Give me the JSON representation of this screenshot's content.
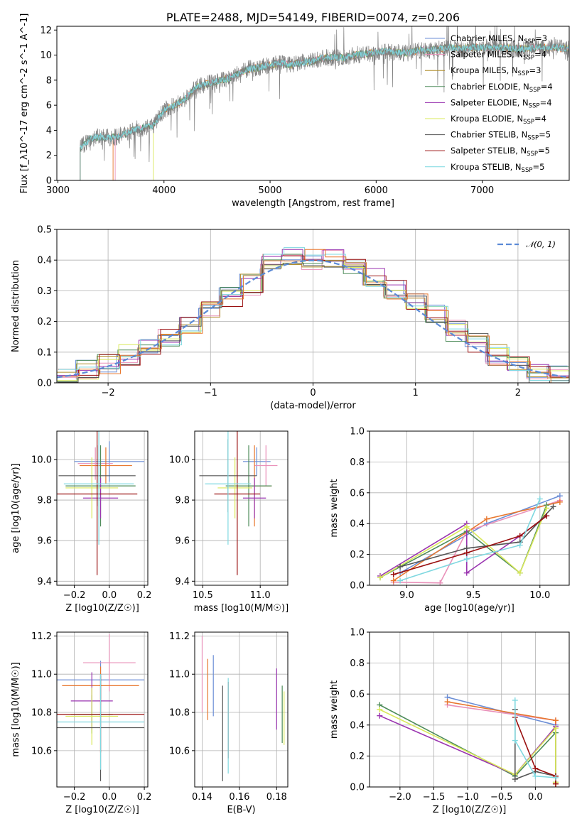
{
  "colors": {
    "Chabrier MILES": "#6b8ed6",
    "Salpeter MILES": "#e990b9",
    "Kroupa MILES": "#b08d2a",
    "Chabrier ELODIE": "#4e8c5a",
    "Salpeter ELODIE": "#9a35b0",
    "Kroupa ELODIE": "#d9e85a",
    "Chabrier STELIB": "#555555",
    "Salpeter STELIB": "#9a1010",
    "Kroupa STELIB": "#7fd8e0",
    "extra_orange": "#e8772e",
    "spectrum_gray": "#808080",
    "gaussian": "#5b8ad6"
  },
  "chart_data": [
    {
      "id": "spectrum",
      "type": "line",
      "title": "PLATE=2488, MJD=54149, FIBERID=0074, z=0.206",
      "xlabel": "wavelength [Angstrom, rest frame]",
      "ylabel": "Flux [f_λ10^-17 erg cm^-2 s^-1 A^-1]",
      "xlim": [
        2990,
        7820
      ],
      "ylim": [
        0,
        12.3
      ],
      "xticks": [
        3000,
        4000,
        5000,
        6000,
        7000
      ],
      "yticks": [
        0,
        2,
        4,
        6,
        8,
        10,
        12
      ],
      "grid": false,
      "legend_position": "top-right",
      "data_envelope": {
        "x": [
          3210,
          3300,
          3400,
          3500,
          3600,
          3700,
          3800,
          3900,
          4000,
          4100,
          4200,
          4300,
          4400,
          4500,
          4600,
          4700,
          4800,
          4900,
          5000,
          5100,
          5200,
          5300,
          5400,
          5500,
          5600,
          5700,
          5800,
          5900,
          6000,
          6100,
          6200,
          6300,
          6400,
          6500,
          6600,
          6700,
          6800,
          6900,
          7000,
          7100,
          7200,
          7300,
          7400,
          7500,
          7600,
          7700,
          7800
        ],
        "y": [
          2.6,
          3.3,
          3.5,
          3.4,
          3.6,
          4.0,
          4.2,
          4.4,
          5.6,
          6.0,
          6.5,
          7.4,
          7.7,
          7.9,
          8.1,
          8.5,
          8.9,
          9.0,
          9.2,
          9.4,
          9.2,
          9.4,
          9.5,
          9.8,
          9.8,
          9.8,
          10.0,
          10.1,
          10.2,
          10.3,
          10.2,
          10.2,
          10.4,
          10.4,
          10.5,
          10.6,
          10.5,
          10.6,
          10.6,
          10.6,
          10.6,
          10.5,
          10.5,
          10.6,
          10.6,
          10.6,
          10.5
        ]
      },
      "series": [
        {
          "name": "Chabrier MILES, N_SSP=3"
        },
        {
          "name": "Salpeter MILES, N_SSP=4"
        },
        {
          "name": "Kroupa MILES, N_SSP=3"
        },
        {
          "name": "Chabrier ELODIE, N_SSP=4"
        },
        {
          "name": "Salpeter ELODIE, N_SSP=4"
        },
        {
          "name": "Kroupa ELODIE, N_SSP=4"
        },
        {
          "name": "Chabrier STELIB, N_SSP=5"
        },
        {
          "name": "Salpeter STELIB, N_SSP=5"
        },
        {
          "name": "Kroupa STELIB, N_SSP=5"
        }
      ],
      "legend_entries": [
        {
          "label": "Chabrier MILES, N",
          "sub": "SSP",
          "tail": "=3",
          "color_key": "Chabrier MILES"
        },
        {
          "label": "Salpeter MILES, N",
          "sub": "SSP",
          "tail": "=4",
          "color_key": "Salpeter MILES"
        },
        {
          "label": "Kroupa MILES, N",
          "sub": "SSP",
          "tail": "=3",
          "color_key": "Kroupa MILES"
        },
        {
          "label": "Chabrier ELODIE, N",
          "sub": "SSP",
          "tail": "=4",
          "color_key": "Chabrier ELODIE"
        },
        {
          "label": "Salpeter ELODIE, N",
          "sub": "SSP",
          "tail": "=4",
          "color_key": "Salpeter ELODIE"
        },
        {
          "label": "Kroupa ELODIE, N",
          "sub": "SSP",
          "tail": "=4",
          "color_key": "Kroupa ELODIE"
        },
        {
          "label": "Chabrier STELIB, N",
          "sub": "SSP",
          "tail": "=5",
          "color_key": "Chabrier STELIB"
        },
        {
          "label": "Salpeter STELIB, N",
          "sub": "SSP",
          "tail": "=5",
          "color_key": "Salpeter STELIB"
        },
        {
          "label": "Kroupa STELIB, N",
          "sub": "SSP",
          "tail": "=5",
          "color_key": "Kroupa STELIB"
        }
      ]
    },
    {
      "id": "residuals",
      "type": "line",
      "xlabel": "(data-model)/error",
      "ylabel": "Normed distribution",
      "xlim": [
        -2.5,
        2.5
      ],
      "ylim": [
        0,
        0.5
      ],
      "xticks": [
        -2,
        -1,
        0,
        1,
        2
      ],
      "yticks": [
        0.0,
        0.1,
        0.2,
        0.3,
        0.4,
        0.5
      ],
      "grid": true,
      "legend_position": "top-right",
      "legend_label": "𝒩(0, 1)",
      "histogram": {
        "bin_edges": [
          -2.5,
          -2.3,
          -2.1,
          -1.9,
          -1.7,
          -1.5,
          -1.3,
          -1.1,
          -0.9,
          -0.7,
          -0.5,
          -0.3,
          -0.1,
          0.1,
          0.3,
          0.5,
          0.7,
          0.9,
          1.1,
          1.3,
          1.5,
          1.7,
          1.9,
          2.1,
          2.3,
          2.5
        ],
        "heights": [
          0.02,
          0.04,
          0.06,
          0.09,
          0.12,
          0.15,
          0.19,
          0.24,
          0.28,
          0.32,
          0.39,
          0.42,
          0.4,
          0.41,
          0.39,
          0.34,
          0.3,
          0.27,
          0.22,
          0.17,
          0.13,
          0.09,
          0.06,
          0.03,
          0.02
        ]
      }
    },
    {
      "id": "age_vs_Z",
      "type": "scatter",
      "xlabel": "Z [log10(Z/Z☉)]",
      "ylabel": "age [log10(age/yr)]",
      "xlim": [
        -0.3,
        0.22
      ],
      "ylim": [
        9.38,
        10.14
      ],
      "xticks": [
        -0.2,
        0.0,
        0.2
      ],
      "yticks": [
        9.4,
        9.6,
        9.8,
        10.0
      ],
      "grid": true,
      "points": [
        {
          "x": 0.0,
          "y": 9.99,
          "xerr": 0.2,
          "yerr": 0.1,
          "color_key": "Chabrier MILES"
        },
        {
          "x": -0.08,
          "y": 9.98,
          "xerr": 0.1,
          "yerr": 0.08,
          "color_key": "Salpeter MILES"
        },
        {
          "x": -0.02,
          "y": 9.97,
          "xerr": 0.15,
          "yerr": 0.09,
          "color_key": "extra_orange"
        },
        {
          "x": -0.05,
          "y": 9.87,
          "xerr": 0.2,
          "yerr": 0.2,
          "color_key": "Chabrier ELODIE"
        },
        {
          "x": -0.05,
          "y": 9.81,
          "xerr": 0.1,
          "yerr": 0.1,
          "color_key": "Salpeter ELODIE"
        },
        {
          "x": -0.1,
          "y": 9.86,
          "xerr": 0.15,
          "yerr": 0.15,
          "color_key": "Kroupa ELODIE"
        },
        {
          "x": -0.07,
          "y": 9.92,
          "xerr": 0.22,
          "yerr": 0.15,
          "color_key": "Chabrier STELIB"
        },
        {
          "x": -0.07,
          "y": 9.83,
          "xerr": 0.23,
          "yerr": 0.4,
          "color_key": "Salpeter STELIB"
        },
        {
          "x": -0.06,
          "y": 9.88,
          "xerr": 0.2,
          "yerr": 0.3,
          "color_key": "Kroupa STELIB"
        }
      ]
    },
    {
      "id": "age_vs_mass",
      "type": "scatter",
      "xlabel": "mass [log10(M/M☉)]",
      "ylabel": "",
      "xlim": [
        10.43,
        11.24
      ],
      "ylim": [
        9.38,
        10.14
      ],
      "xticks": [
        10.5,
        11.0
      ],
      "yticks": [
        9.4,
        9.6,
        9.8,
        10.0
      ],
      "grid": true,
      "points": [
        {
          "x": 10.97,
          "y": 9.99,
          "xerr": 0.12,
          "yerr": 0.07,
          "color_key": "Chabrier MILES"
        },
        {
          "x": 11.05,
          "y": 9.97,
          "xerr": 0.1,
          "yerr": 0.1,
          "color_key": "Salpeter MILES"
        },
        {
          "x": 10.95,
          "y": 9.87,
          "xerr": 0.15,
          "yerr": 0.2,
          "color_key": "extra_orange"
        },
        {
          "x": 10.9,
          "y": 9.87,
          "xerr": 0.2,
          "yerr": 0.2,
          "color_key": "Chabrier ELODIE"
        },
        {
          "x": 10.95,
          "y": 9.81,
          "xerr": 0.1,
          "yerr": 0.1,
          "color_key": "Salpeter ELODIE"
        },
        {
          "x": 10.78,
          "y": 9.86,
          "xerr": 0.15,
          "yerr": 0.15,
          "color_key": "Kroupa ELODIE"
        },
        {
          "x": 10.72,
          "y": 9.92,
          "xerr": 0.25,
          "yerr": 0.18,
          "color_key": "Chabrier STELIB"
        },
        {
          "x": 10.8,
          "y": 9.83,
          "xerr": 0.2,
          "yerr": 0.4,
          "color_key": "Salpeter STELIB"
        },
        {
          "x": 10.72,
          "y": 9.88,
          "xerr": 0.2,
          "yerr": 0.3,
          "color_key": "Kroupa STELIB"
        }
      ]
    },
    {
      "id": "mass_weight_vs_age",
      "type": "line",
      "xlabel": "age [log10(age/yr)]",
      "ylabel": "mass weight",
      "xlim": [
        8.72,
        10.22
      ],
      "ylim": [
        0.0,
        1.0
      ],
      "xticks": [
        9.0,
        9.5,
        10.0
      ],
      "yticks": [
        0.0,
        0.2,
        0.4,
        0.6,
        0.8,
        1.0
      ],
      "grid": true,
      "series": [
        {
          "color_key": "Chabrier MILES",
          "x": [
            8.95,
            9.6,
            10.15
          ],
          "y": [
            0.08,
            0.4,
            0.58
          ]
        },
        {
          "color_key": "Salpeter MILES",
          "x": [
            8.9,
            9.25,
            9.45,
            10.15
          ],
          "y": [
            0.02,
            0.015,
            0.35,
            0.55
          ]
        },
        {
          "color_key": "extra_orange",
          "x": [
            8.9,
            9.6,
            10.15
          ],
          "y": [
            0.03,
            0.43,
            0.54
          ]
        },
        {
          "color_key": "Chabrier ELODIE",
          "x": [
            8.8,
            9.45,
            9.85,
            10.05
          ],
          "y": [
            0.05,
            0.35,
            0.08,
            0.52
          ]
        },
        {
          "color_key": "Salpeter ELODIE",
          "x": [
            8.8,
            9.45,
            9.45,
            9.85,
            10.05
          ],
          "y": [
            0.06,
            0.4,
            0.08,
            0.32,
            0.45
          ]
        },
        {
          "color_key": "Kroupa ELODIE",
          "x": [
            8.8,
            9.45,
            9.85,
            10.05
          ],
          "y": [
            0.05,
            0.38,
            0.08,
            0.5
          ]
        },
        {
          "color_key": "Chabrier STELIB",
          "x": [
            8.95,
            9.45,
            9.85,
            10.1
          ],
          "y": [
            0.12,
            0.24,
            0.28,
            0.51
          ]
        },
        {
          "color_key": "Salpeter STELIB",
          "x": [
            8.9,
            9.45,
            9.85,
            10.05
          ],
          "y": [
            0.07,
            0.21,
            0.32,
            0.45
          ]
        },
        {
          "color_key": "Kroupa STELIB",
          "x": [
            8.95,
            9.45,
            9.85,
            10.0
          ],
          "y": [
            0.03,
            0.17,
            0.26,
            0.56
          ]
        }
      ]
    },
    {
      "id": "mass_vs_Z",
      "type": "scatter",
      "xlabel": "Z [log10(Z/Z☉)]",
      "ylabel": "mass [log10(M/M☉)]",
      "xlim": [
        -0.3,
        0.22
      ],
      "ylim": [
        10.41,
        11.22
      ],
      "xticks": [
        -0.2,
        0.0,
        0.2
      ],
      "yticks": [
        10.6,
        10.8,
        11.0,
        11.2
      ],
      "grid": true,
      "points": [
        {
          "x": -0.05,
          "y": 10.97,
          "xerr": 0.25,
          "yerr": 0.1,
          "color_key": "Chabrier MILES"
        },
        {
          "x": 0.0,
          "y": 11.06,
          "xerr": 0.15,
          "yerr": 0.15,
          "color_key": "Salpeter MILES"
        },
        {
          "x": -0.05,
          "y": 10.94,
          "xerr": 0.22,
          "yerr": 0.1,
          "color_key": "extra_orange"
        },
        {
          "x": -0.1,
          "y": 10.79,
          "xerr": 0.12,
          "yerr": 0.1,
          "color_key": "Chabrier ELODIE"
        },
        {
          "x": -0.1,
          "y": 10.86,
          "xerr": 0.12,
          "yerr": 0.15,
          "color_key": "Salpeter ELODIE"
        },
        {
          "x": -0.1,
          "y": 10.78,
          "xerr": 0.15,
          "yerr": 0.15,
          "color_key": "Kroupa ELODIE"
        },
        {
          "x": -0.05,
          "y": 10.72,
          "xerr": 0.25,
          "yerr": 0.28,
          "color_key": "Chabrier STELIB"
        },
        {
          "x": -0.05,
          "y": 10.79,
          "xerr": 0.25,
          "yerr": 0.2,
          "color_key": "Salpeter STELIB"
        },
        {
          "x": -0.05,
          "y": 10.75,
          "xerr": 0.25,
          "yerr": 0.25,
          "color_key": "Kroupa STELIB"
        }
      ]
    },
    {
      "id": "mass_vs_ebv",
      "type": "scatter",
      "xlabel": "E(B-V)",
      "ylabel": "",
      "xlim": [
        0.136,
        0.186
      ],
      "ylim": [
        10.41,
        11.22
      ],
      "xticks": [
        0.14,
        0.16,
        0.18
      ],
      "yticks": [
        10.6,
        10.8,
        11.0,
        11.2
      ],
      "grid": true,
      "points": [
        {
          "x": 0.146,
          "y": 10.94,
          "yerr": 0.16,
          "color_key": "Chabrier MILES"
        },
        {
          "x": 0.14,
          "y": 11.0,
          "yerr": 0.2,
          "color_key": "Salpeter MILES"
        },
        {
          "x": 0.143,
          "y": 10.92,
          "yerr": 0.16,
          "color_key": "extra_orange"
        },
        {
          "x": 0.183,
          "y": 10.79,
          "yerr": 0.15,
          "color_key": "Chabrier ELODIE"
        },
        {
          "x": 0.18,
          "y": 10.87,
          "yerr": 0.16,
          "color_key": "Salpeter ELODIE"
        },
        {
          "x": 0.184,
          "y": 10.77,
          "yerr": 0.14,
          "color_key": "Kroupa ELODIE"
        },
        {
          "x": 0.151,
          "y": 10.69,
          "yerr": 0.25,
          "color_key": "Chabrier STELIB"
        },
        {
          "x": 0.154,
          "y": 10.76,
          "yerr": 0.2,
          "color_key": "Salpeter STELIB"
        },
        {
          "x": 0.154,
          "y": 10.73,
          "yerr": 0.25,
          "color_key": "Kroupa STELIB"
        }
      ]
    },
    {
      "id": "mass_weight_vs_Z",
      "type": "line",
      "xlabel": "Z [log10(Z/Z☉)]",
      "ylabel": "mass weight",
      "xlim": [
        -2.45,
        0.5
      ],
      "ylim": [
        0.0,
        1.0
      ],
      "xticks": [
        -2.0,
        -1.5,
        -1.0,
        -0.5,
        0.0
      ],
      "yticks": [
        0.0,
        0.2,
        0.4,
        0.6,
        0.8,
        1.0
      ],
      "grid": true,
      "series": [
        {
          "color_key": "Chabrier MILES",
          "x": [
            -1.3,
            0.3
          ],
          "y": [
            0.58,
            0.4
          ]
        },
        {
          "color_key": "Salpeter MILES",
          "x": [
            -1.3,
            0.3,
            0.3
          ],
          "y": [
            0.53,
            0.43,
            0.02
          ]
        },
        {
          "color_key": "extra_orange",
          "x": [
            -1.3,
            0.3,
            0.3
          ],
          "y": [
            0.55,
            0.43,
            0.02
          ]
        },
        {
          "color_key": "Chabrier ELODIE",
          "x": [
            -2.3,
            -0.3,
            0.3,
            0.3
          ],
          "y": [
            0.53,
            0.07,
            0.35,
            0.03
          ]
        },
        {
          "color_key": "Salpeter ELODIE",
          "x": [
            -2.3,
            -0.3,
            0.3
          ],
          "y": [
            0.46,
            0.08,
            0.39
          ]
        },
        {
          "color_key": "Kroupa ELODIE",
          "x": [
            -2.3,
            -0.3,
            0.3,
            0.3
          ],
          "y": [
            0.5,
            0.08,
            0.38,
            0.03
          ]
        },
        {
          "color_key": "Chabrier STELIB",
          "x": [
            -0.3,
            -0.3,
            0.0,
            0.3
          ],
          "y": [
            0.5,
            0.05,
            0.1,
            0.07
          ]
        },
        {
          "color_key": "Salpeter STELIB",
          "x": [
            -0.3,
            0.0,
            0.3,
            0.3
          ],
          "y": [
            0.45,
            0.12,
            0.07,
            0.02
          ]
        },
        {
          "color_key": "Kroupa STELIB",
          "x": [
            -0.3,
            -0.3,
            0.0,
            0.3
          ],
          "y": [
            0.56,
            0.3,
            0.07,
            0.06
          ]
        }
      ]
    }
  ]
}
